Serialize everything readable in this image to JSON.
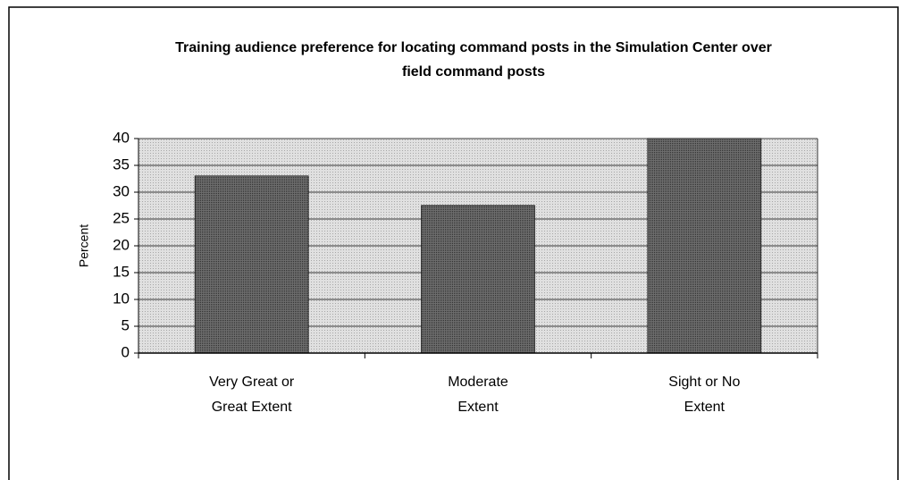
{
  "chart_data": {
    "type": "bar",
    "title": "Training audience preference for locating command posts in the Simulation Center over field command posts",
    "y_label": "Percent",
    "categories": [
      "Very Great or Great Extent",
      "Moderate Extent",
      "Sight or No Extent"
    ],
    "values": [
      33,
      27.5,
      40
    ],
    "color": "#555555",
    "plot_background": "#d6d6d6",
    "ylim": [
      0,
      40
    ],
    "yticks": [
      0,
      5,
      10,
      15,
      20,
      25,
      30,
      35,
      40
    ],
    "grid": true
  }
}
